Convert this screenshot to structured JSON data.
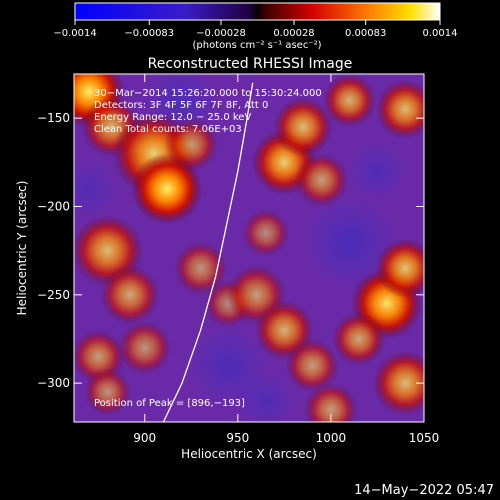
{
  "chart_data": {
    "type": "heatmap",
    "title": "Reconstructed RHESSI Image",
    "xlabel": "Heliocentric X (arcsec)",
    "ylabel": "Heliocentric Y (arcsec)",
    "xlim": [
      862,
      1050
    ],
    "ylim": [
      -322,
      -125
    ],
    "x_ticks": [
      {
        "v": 900,
        "label": "900"
      },
      {
        "v": 950,
        "label": "950"
      },
      {
        "v": 1000,
        "label": "1000"
      },
      {
        "v": 1050,
        "label": "1050"
      }
    ],
    "y_ticks": [
      {
        "v": -150,
        "label": "−150"
      },
      {
        "v": -200,
        "label": "−200"
      },
      {
        "v": -250,
        "label": "−250"
      },
      {
        "v": -300,
        "label": "−300"
      }
    ],
    "colorbar": {
      "min": -0.0014,
      "max": 0.0014,
      "ticks": [
        {
          "v": -0.0014,
          "label": "−0.0014"
        },
        {
          "v": -0.00083,
          "label": "−0.00083"
        },
        {
          "v": -0.00028,
          "label": "−0.00028"
        },
        {
          "v": 0.00028,
          "label": "0.00028"
        },
        {
          "v": 0.00083,
          "label": "0.00083"
        },
        {
          "v": 0.0014,
          "label": "0.0014"
        }
      ],
      "unit_label": "(photons cm⁻² s⁻¹ asec⁻²)"
    },
    "annotations": [
      "30−Mar−2014 15:26:20.000 to 15:30:24.000",
      "Detectors: 3F 4F 5F 6F 7F 8F, Att 0",
      "Energy Range: 12.0 − 25.0 keV",
      "Clean     Total counts: 7.06E+03"
    ],
    "peak_label": "Position of Peak = [896,−193]",
    "limb_curve": [
      [
        910,
        -322
      ],
      [
        920,
        -300
      ],
      [
        930,
        -270
      ],
      [
        938,
        -240
      ],
      [
        944,
        -210
      ],
      [
        950,
        -180
      ],
      [
        955,
        -150
      ],
      [
        958,
        -130
      ]
    ],
    "blobs": [
      {
        "x": 870,
        "y": -135,
        "r": 12,
        "a": 1.0
      },
      {
        "x": 882,
        "y": -155,
        "r": 10,
        "a": 0.7
      },
      {
        "x": 905,
        "y": -170,
        "r": 14,
        "a": 0.85
      },
      {
        "x": 912,
        "y": -190,
        "r": 12,
        "a": 1.0
      },
      {
        "x": 925,
        "y": -165,
        "r": 9,
        "a": 0.6
      },
      {
        "x": 880,
        "y": -225,
        "r": 12,
        "a": 0.75
      },
      {
        "x": 892,
        "y": -250,
        "r": 10,
        "a": 0.65
      },
      {
        "x": 930,
        "y": -235,
        "r": 9,
        "a": 0.55
      },
      {
        "x": 945,
        "y": -255,
        "r": 8,
        "a": 0.5
      },
      {
        "x": 875,
        "y": -285,
        "r": 9,
        "a": 0.6
      },
      {
        "x": 880,
        "y": -305,
        "r": 8,
        "a": 0.55
      },
      {
        "x": 900,
        "y": -280,
        "r": 9,
        "a": 0.55
      },
      {
        "x": 975,
        "y": -175,
        "r": 11,
        "a": 0.85
      },
      {
        "x": 985,
        "y": -155,
        "r": 10,
        "a": 0.75
      },
      {
        "x": 1010,
        "y": -140,
        "r": 9,
        "a": 0.7
      },
      {
        "x": 1040,
        "y": -145,
        "r": 10,
        "a": 0.75
      },
      {
        "x": 995,
        "y": -185,
        "r": 9,
        "a": 0.6
      },
      {
        "x": 965,
        "y": -215,
        "r": 8,
        "a": 0.5
      },
      {
        "x": 960,
        "y": -250,
        "r": 10,
        "a": 0.6
      },
      {
        "x": 975,
        "y": -270,
        "r": 10,
        "a": 0.7
      },
      {
        "x": 990,
        "y": -290,
        "r": 9,
        "a": 0.6
      },
      {
        "x": 1000,
        "y": -315,
        "r": 9,
        "a": 0.6
      },
      {
        "x": 1030,
        "y": -255,
        "r": 12,
        "a": 0.95
      },
      {
        "x": 1040,
        "y": -235,
        "r": 10,
        "a": 0.8
      },
      {
        "x": 1040,
        "y": -300,
        "r": 11,
        "a": 0.75
      },
      {
        "x": 1015,
        "y": -275,
        "r": 9,
        "a": 0.65
      }
    ],
    "voids": [
      {
        "x": 920,
        "y": -140,
        "r": 12,
        "a": 0.5
      },
      {
        "x": 945,
        "y": -290,
        "r": 14,
        "a": 0.5
      },
      {
        "x": 1010,
        "y": -220,
        "r": 16,
        "a": 0.55
      },
      {
        "x": 870,
        "y": -190,
        "r": 10,
        "a": 0.4
      },
      {
        "x": 965,
        "y": -310,
        "r": 10,
        "a": 0.45
      },
      {
        "x": 1025,
        "y": -180,
        "r": 10,
        "a": 0.45
      }
    ]
  },
  "footer": {
    "date": "14−May−2022 05:47"
  }
}
